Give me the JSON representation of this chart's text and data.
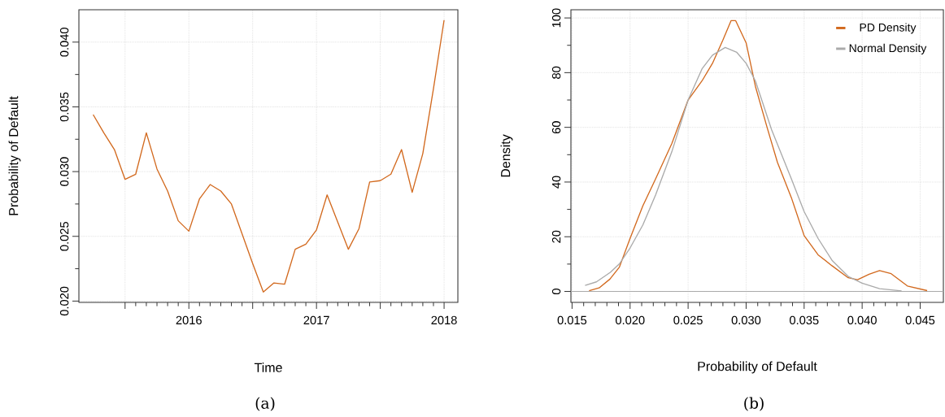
{
  "chart_data": [
    {
      "type": "line",
      "xlabel": "Time",
      "ylabel": "Probability of Default",
      "color": "#d2691e",
      "x": [
        "2015-04",
        "2015-05",
        "2015-06",
        "2015-07",
        "2015-08",
        "2015-09",
        "2015-10",
        "2015-11",
        "2015-12",
        "2016-01",
        "2016-02",
        "2016-03",
        "2016-04",
        "2016-05",
        "2016-06",
        "2016-07",
        "2016-08",
        "2016-09",
        "2016-10",
        "2016-11",
        "2016-12",
        "2017-01",
        "2017-02",
        "2017-03",
        "2017-04",
        "2017-05",
        "2017-06",
        "2017-07",
        "2017-08",
        "2017-09",
        "2017-10",
        "2017-11",
        "2017-12",
        "2018-01"
      ],
      "values": [
        0.0344,
        0.033,
        0.0317,
        0.0294,
        0.0298,
        0.033,
        0.0302,
        0.0285,
        0.0262,
        0.0254,
        0.0279,
        0.029,
        0.0285,
        0.0275,
        0.0252,
        0.0229,
        0.0207,
        0.0214,
        0.0213,
        0.024,
        0.0244,
        0.0255,
        0.0282,
        0.0261,
        0.024,
        0.0256,
        0.0292,
        0.0293,
        0.0298,
        0.0317,
        0.0284,
        0.0314,
        0.0364,
        0.0417
      ],
      "xlim": [
        "2015-02-21",
        "2018-02-10"
      ],
      "ylim": [
        0.0199,
        0.0425
      ],
      "xticks": [
        {
          "value": "2015-07",
          "label": null
        },
        "2016",
        {
          "value": "2016-07",
          "label": null
        },
        "2017",
        {
          "value": "2017-07",
          "label": null
        },
        "2018"
      ],
      "yticks": [
        {
          "value": 0.02,
          "label": "0.020"
        },
        0.025,
        {
          "value": 0.03,
          "label": "0.030"
        },
        0.035,
        {
          "value": 0.04,
          "label": "0.040"
        }
      ],
      "grid": true,
      "annotations": [
        "(a)"
      ]
    },
    {
      "type": "line",
      "xlabel": "Probability of Default",
      "ylabel": "Density",
      "legend": "top right",
      "series": [
        {
          "name": "PD Density",
          "color": "#d2691e",
          "x": [
            0.01647,
            0.01733,
            0.01826,
            0.01908,
            0.02,
            0.0211,
            0.0222,
            0.0236,
            0.025,
            0.0262,
            0.0271,
            0.028,
            0.0287,
            0.0291,
            0.03,
            0.0308,
            0.0318,
            0.0327,
            0.0339,
            0.035,
            0.0362,
            0.0374,
            0.0388,
            0.0396,
            0.0406,
            0.0415,
            0.0425,
            0.0439,
            0.0456
          ],
          "values": [
            0.3,
            1.3,
            4.5,
            8.9,
            19.4,
            31.3,
            41.2,
            54.1,
            70.0,
            77.0,
            83.4,
            91.9,
            99.0,
            99.0,
            90.9,
            75.0,
            60.1,
            47.2,
            34.3,
            20.4,
            13.4,
            9.4,
            5.0,
            4.3,
            6.3,
            7.6,
            6.5,
            2.0,
            0.3
          ]
        },
        {
          "name": "Normal Density",
          "color": "#aaaaaa",
          "x": [
            0.01612,
            0.0171,
            0.0183,
            0.0191,
            0.02,
            0.0211,
            0.0222,
            0.0236,
            0.025,
            0.0262,
            0.0271,
            0.0282,
            0.0292,
            0.03,
            0.0308,
            0.0322,
            0.0339,
            0.035,
            0.0362,
            0.0374,
            0.0388,
            0.04,
            0.0415,
            0.0434
          ],
          "values": [
            2.2,
            3.5,
            7.0,
            10.2,
            15.9,
            24.3,
            35.3,
            51.1,
            70.0,
            81.4,
            86.4,
            89.2,
            87.4,
            83.4,
            77.0,
            59.1,
            41.2,
            29.2,
            19.4,
            11.4,
            5.5,
            3.0,
            1.0,
            0.2
          ]
        }
      ],
      "xlim": [
        0.0149,
        0.047
      ],
      "ylim": [
        -4,
        103
      ],
      "xticks": [
        0.015,
        {
          "value": 0.02,
          "label": "0.020"
        },
        0.025,
        {
          "value": 0.03,
          "label": "0.030"
        },
        0.035,
        {
          "value": 0.04,
          "label": "0.040"
        },
        0.045
      ],
      "yticks": [
        0,
        20,
        40,
        60,
        80,
        100
      ],
      "ref_lines": [
        {
          "axis": "y",
          "value": 0,
          "color": "#aaaaaa"
        }
      ],
      "grid": true,
      "annotations": [
        "(b)"
      ]
    }
  ]
}
